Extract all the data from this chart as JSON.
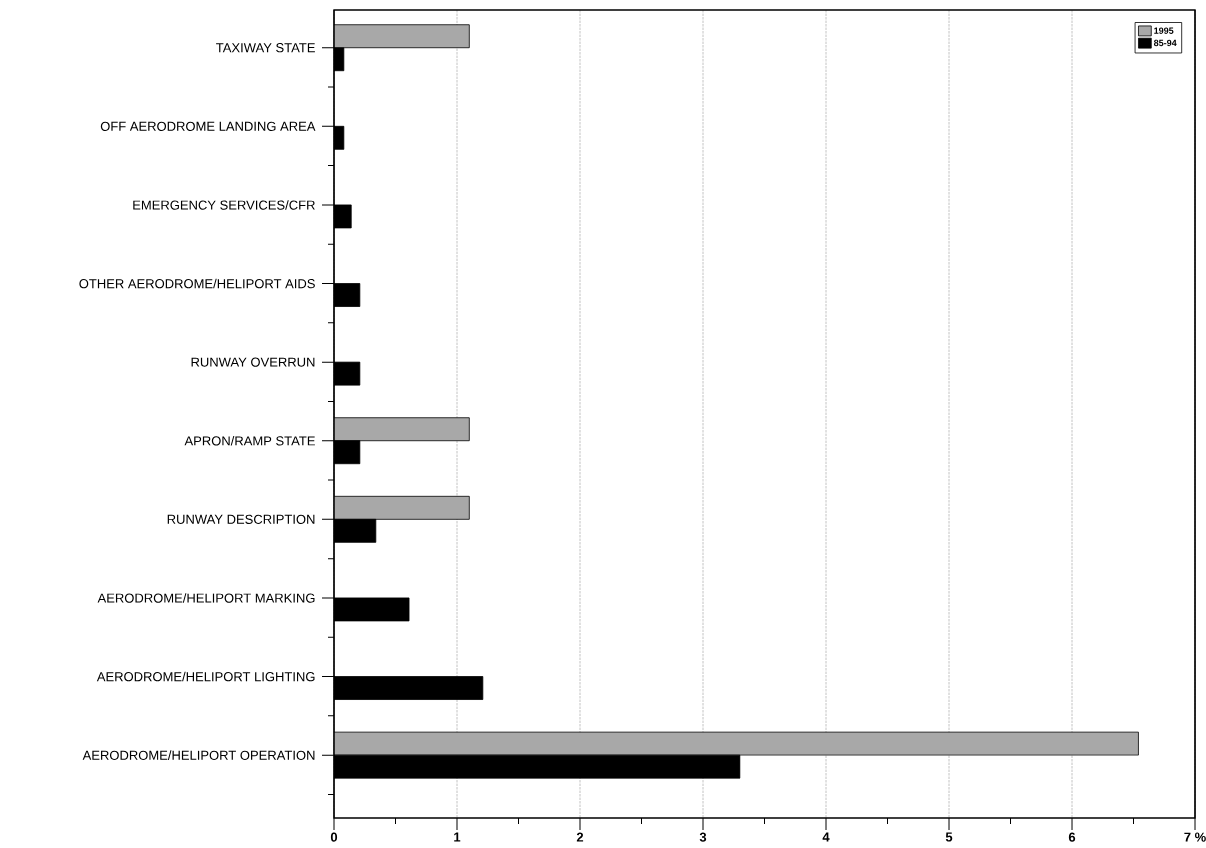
{
  "chart_data": {
    "type": "bar",
    "orientation": "horizontal",
    "categories": [
      "TAXIWAY STATE",
      "OFF AERODROME LANDING AREA",
      "EMERGENCY SERVICES/CFR",
      "OTHER AERODROME/HELIPORT AIDS",
      "RUNWAY OVERRUN",
      "APRON/RAMP STATE",
      "RUNWAY DESCRIPTION",
      "AERODROME/HELIPORT MARKING",
      "AERODROME/HELIPORT LIGHTING",
      "AERODROME/HELIPORT OPERATION"
    ],
    "series": [
      {
        "name": "1995",
        "color": "#a8a8a8",
        "values": [
          1.1,
          null,
          null,
          null,
          null,
          1.1,
          1.1,
          null,
          null,
          6.54
        ]
      },
      {
        "name": "85-94",
        "color": "#000000",
        "values": [
          0.08,
          0.08,
          0.14,
          0.21,
          0.21,
          0.21,
          0.34,
          0.61,
          1.21,
          3.3
        ]
      }
    ],
    "xlim": [
      0,
      7
    ],
    "xticks": [
      0,
      1,
      2,
      3,
      4,
      5,
      6,
      {
        "value": 7,
        "label": "7 %"
      }
    ],
    "grid": "x",
    "legend": "top right"
  }
}
